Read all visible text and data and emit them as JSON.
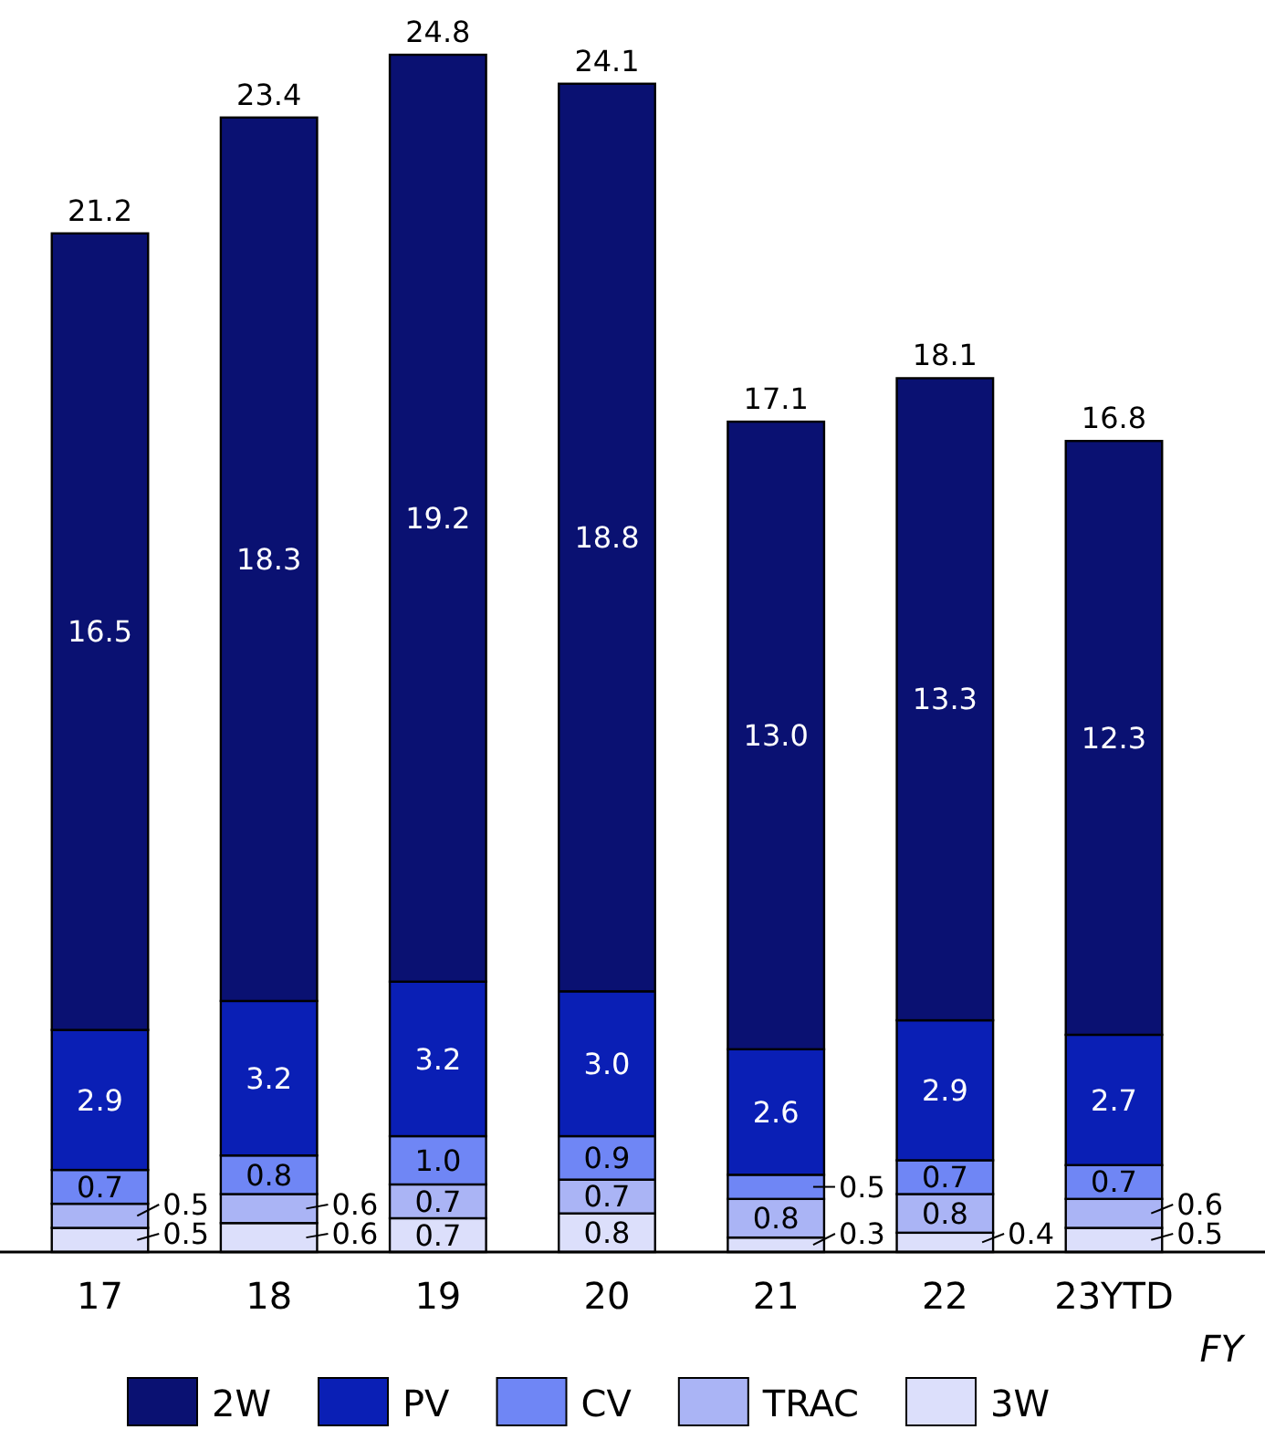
{
  "chart_data": {
    "type": "bar",
    "stacked": true,
    "categories": [
      "17",
      "18",
      "19",
      "20",
      "21",
      "22",
      "23YTD"
    ],
    "xlabel": "FY",
    "legend": "bottom",
    "series": [
      {
        "name": "3W",
        "color": "#dcdffb",
        "values": [
          0.5,
          0.6,
          0.7,
          0.8,
          0.3,
          0.4,
          0.5
        ],
        "value_labels": [
          "0.5",
          "0.6",
          "0.7",
          "0.8",
          "0.3",
          "0.4",
          "0.5"
        ]
      },
      {
        "name": "TRAC",
        "color": "#aab4f5",
        "values": [
          0.5,
          0.6,
          0.7,
          0.7,
          0.8,
          0.8,
          0.6
        ],
        "value_labels": [
          "0.5",
          "0.6",
          "0.7",
          "0.7",
          "0.8",
          "0.8",
          "0.6"
        ]
      },
      {
        "name": "CV",
        "color": "#6f86f5",
        "values": [
          0.7,
          0.8,
          1.0,
          0.9,
          0.5,
          0.7,
          0.7
        ],
        "value_labels": [
          "0.7",
          "0.8",
          "1.0",
          "0.9",
          "0.5",
          "0.7",
          "0.7"
        ]
      },
      {
        "name": "PV",
        "color": "#0a1fb5",
        "values": [
          2.9,
          3.2,
          3.2,
          3.0,
          2.6,
          2.9,
          2.7
        ],
        "value_labels": [
          "2.9",
          "3.2",
          "3.2",
          "3.0",
          "2.6",
          "2.9",
          "2.7"
        ]
      },
      {
        "name": "2W",
        "color": "#0a1172",
        "values": [
          16.5,
          18.3,
          19.2,
          18.8,
          13.0,
          13.3,
          12.3
        ],
        "value_labels": [
          "16.5",
          "18.3",
          "19.2",
          "18.8",
          "13.0",
          "13.3",
          "12.3"
        ]
      }
    ],
    "totals": [
      "21.2",
      "23.4",
      "24.8",
      "24.1",
      "17.1",
      "18.1",
      "16.8"
    ]
  }
}
